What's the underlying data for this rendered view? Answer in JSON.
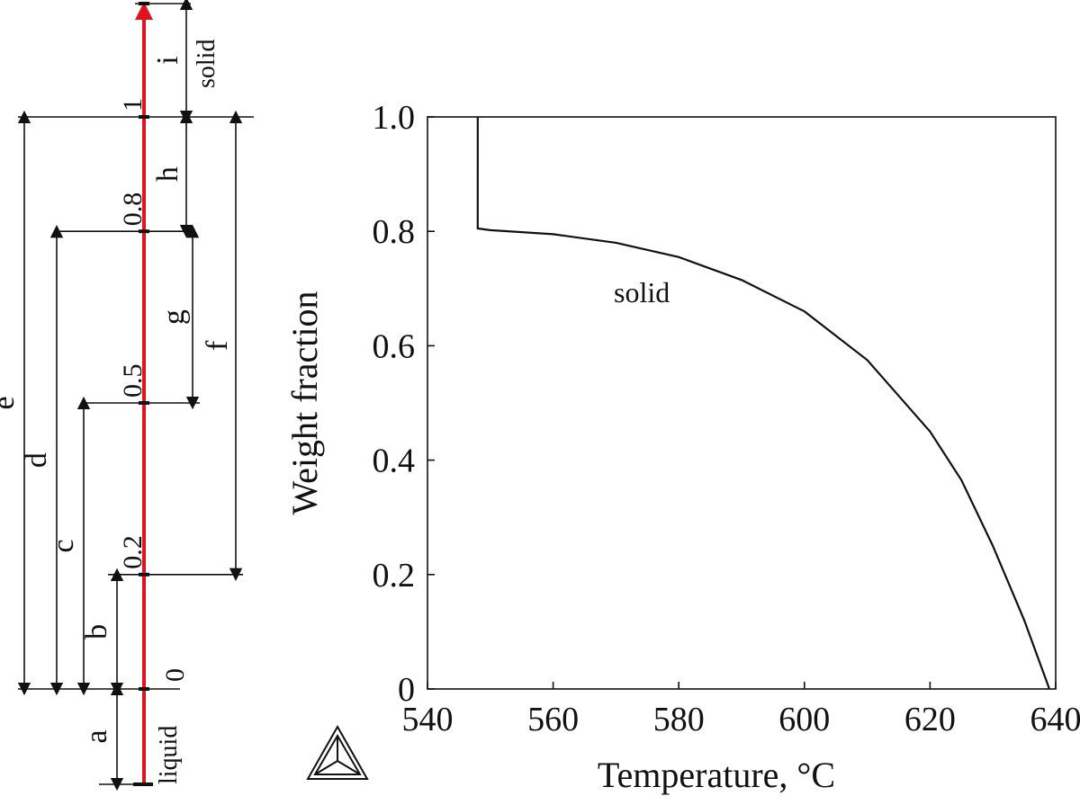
{
  "chart_data": {
    "type": "line",
    "x": [
      548,
      548,
      550,
      560,
      570,
      580,
      590,
      600,
      610,
      620,
      625,
      630,
      635,
      638,
      639
    ],
    "series": [
      {
        "name": "solid",
        "values": [
          1.0,
          0.805,
          0.802,
          0.795,
          0.78,
          0.755,
          0.715,
          0.66,
          0.575,
          0.45,
          0.365,
          0.25,
          0.12,
          0.03,
          0.0
        ]
      }
    ],
    "xlabel": "Temperature, °C",
    "ylabel": "Weight fraction",
    "xlim": [
      540,
      640
    ],
    "ylim": [
      0,
      1.0
    ],
    "xticks": [
      "540",
      "560",
      "580",
      "600",
      "620",
      "640"
    ],
    "yticks": [
      "0",
      "0.2",
      "0.4",
      "0.6",
      "0.8",
      "1.0"
    ],
    "grid": false,
    "legend": "none"
  },
  "schematic": {
    "arrow_color": "#e0141e",
    "fraction_marks": [
      {
        "value": 0,
        "label": "0"
      },
      {
        "value": 0.2,
        "label": "0.2"
      },
      {
        "value": 0.5,
        "label": "0.5"
      },
      {
        "value": 0.8,
        "label": "0.8"
      },
      {
        "value": 1,
        "label": "1"
      }
    ],
    "state_bottom": "liquid",
    "state_top": "solid",
    "dimensions": [
      {
        "letter": "a",
        "from": "liquid_end",
        "to": 0
      },
      {
        "letter": "b",
        "from": 0,
        "to": 0.2
      },
      {
        "letter": "c",
        "from": 0,
        "to": 0.5
      },
      {
        "letter": "d",
        "from": 0,
        "to": 0.8
      },
      {
        "letter": "e",
        "from": 0,
        "to": 1
      },
      {
        "letter": "f",
        "from": 0.2,
        "to": 1
      },
      {
        "letter": "g",
        "from": 0.5,
        "to": 0.8
      },
      {
        "letter": "h",
        "from": 0.8,
        "to": 1
      },
      {
        "letter": "i",
        "from": 1,
        "to": "solid_end"
      }
    ]
  },
  "logo_icon": "thermo-calc-triangle-logo"
}
